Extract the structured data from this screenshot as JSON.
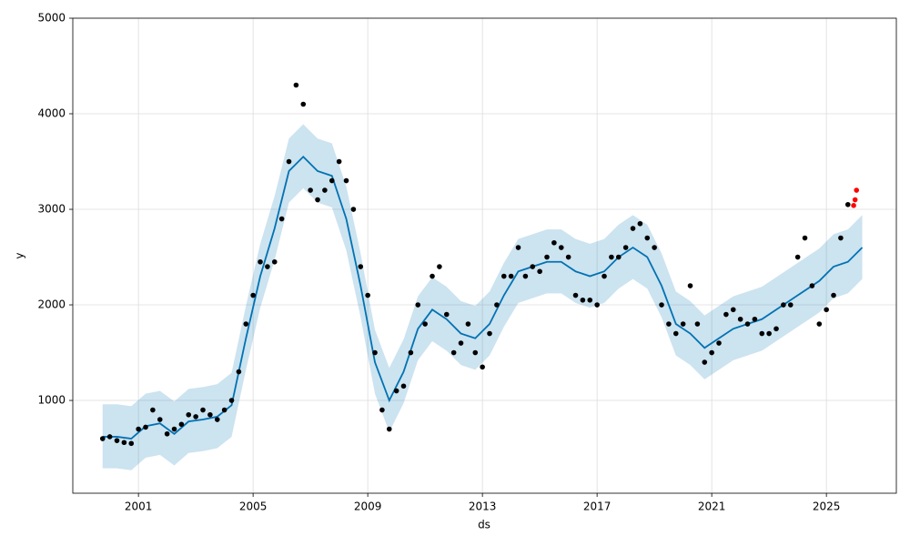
{
  "chart_data": {
    "type": "forecast",
    "xlabel": "ds",
    "ylabel": "y",
    "xlim": [
      1998.71,
      2027.44
    ],
    "ylim": [
      29,
      5000
    ],
    "xticks": [
      2001,
      2005,
      2009,
      2013,
      2017,
      2021,
      2025
    ],
    "yticks": [
      1000,
      2000,
      3000,
      4000,
      5000
    ],
    "grid": true,
    "points": {
      "color": "#000000",
      "x": [
        1999.75,
        2000.0,
        2000.25,
        2000.5,
        2000.75,
        2001.0,
        2001.25,
        2001.5,
        2001.75,
        2002.0,
        2002.25,
        2002.5,
        2002.75,
        2003.0,
        2003.25,
        2003.5,
        2003.75,
        2004.0,
        2004.25,
        2004.5,
        2004.75,
        2005.0,
        2005.25,
        2005.5,
        2005.75,
        2006.0,
        2006.25,
        2006.5,
        2006.75,
        2007.0,
        2007.25,
        2007.5,
        2007.75,
        2008.0,
        2008.25,
        2008.5,
        2008.75,
        2009.0,
        2009.25,
        2009.5,
        2009.75,
        2010.0,
        2010.25,
        2010.5,
        2010.75,
        2011.0,
        2011.25,
        2011.5,
        2011.75,
        2012.0,
        2012.25,
        2012.5,
        2012.75,
        2013.0,
        2013.25,
        2013.5,
        2013.75,
        2014.0,
        2014.25,
        2014.5,
        2014.75,
        2015.0,
        2015.25,
        2015.5,
        2015.75,
        2016.0,
        2016.25,
        2016.5,
        2016.75,
        2017.0,
        2017.25,
        2017.5,
        2017.75,
        2018.0,
        2018.25,
        2018.5,
        2018.75,
        2019.0,
        2019.25,
        2019.5,
        2019.75,
        2020.0,
        2020.25,
        2020.5,
        2020.75,
        2021.0,
        2021.25,
        2021.5,
        2021.75,
        2022.0,
        2022.25,
        2022.5,
        2022.75,
        2023.0,
        2023.25,
        2023.5,
        2023.75,
        2024.0,
        2024.25,
        2024.5,
        2024.75,
        2025.0,
        2025.25,
        2025.5,
        2025.75
      ],
      "values": [
        600,
        620,
        580,
        560,
        550,
        700,
        720,
        900,
        800,
        650,
        700,
        750,
        850,
        830,
        900,
        850,
        800,
        900,
        1000,
        1300,
        1800,
        2100,
        2450,
        2400,
        2450,
        2900,
        3500,
        4300,
        4100,
        3200,
        3100,
        3200,
        3300,
        3500,
        3300,
        3000,
        2400,
        2100,
        1500,
        900,
        700,
        1100,
        1150,
        1500,
        2000,
        1800,
        2300,
        2400,
        1900,
        1500,
        1600,
        1800,
        1500,
        1350,
        1700,
        2000,
        2300,
        2300,
        2600,
        2300,
        2400,
        2350,
        2500,
        2650,
        2600,
        2500,
        2100,
        2050,
        2050,
        2000,
        2300,
        2500,
        2500,
        2600,
        2800,
        2850,
        2700,
        2600,
        2000,
        1800,
        1700,
        1800,
        2200,
        1800,
        1400,
        1500,
        1600,
        1900,
        1950,
        1850,
        1800,
        1850,
        1700,
        1700,
        1750,
        2000,
        2000,
        2500,
        2700,
        2200,
        1800,
        1950,
        2100,
        2700,
        3050
      ]
    },
    "future_points": {
      "color": "#ff0000",
      "x": [
        2025.95,
        2026.0,
        2026.05
      ],
      "values": [
        3040,
        3100,
        3200
      ]
    },
    "forecast": {
      "color": "#0072B2",
      "x": [
        1999.75,
        2000.25,
        2000.75,
        2001.25,
        2001.75,
        2002.25,
        2002.75,
        2003.25,
        2003.75,
        2004.25,
        2004.75,
        2005.25,
        2005.75,
        2006.25,
        2006.75,
        2007.25,
        2007.75,
        2008.25,
        2008.75,
        2009.25,
        2009.75,
        2010.25,
        2010.75,
        2011.25,
        2011.75,
        2012.25,
        2012.75,
        2013.25,
        2013.75,
        2014.25,
        2014.75,
        2015.25,
        2015.75,
        2016.25,
        2016.75,
        2017.25,
        2017.75,
        2018.25,
        2018.75,
        2019.25,
        2019.75,
        2020.25,
        2020.75,
        2021.25,
        2021.75,
        2022.25,
        2022.75,
        2023.25,
        2023.75,
        2024.25,
        2024.75,
        2025.25,
        2025.75,
        2026.25
      ],
      "values": [
        620,
        620,
        600,
        730,
        760,
        650,
        780,
        800,
        830,
        950,
        1650,
        2300,
        2800,
        3400,
        3550,
        3400,
        3350,
        2900,
        2200,
        1400,
        1000,
        1300,
        1750,
        1950,
        1850,
        1700,
        1650,
        1800,
        2100,
        2350,
        2400,
        2450,
        2450,
        2350,
        2300,
        2350,
        2500,
        2600,
        2500,
        2200,
        1800,
        1700,
        1550,
        1650,
        1750,
        1800,
        1850,
        1950,
        2050,
        2150,
        2250,
        2400,
        2450,
        2600
      ],
      "lower": [
        290,
        290,
        270,
        400,
        430,
        320,
        450,
        470,
        500,
        620,
        1320,
        1970,
        2470,
        3070,
        3220,
        3070,
        3020,
        2570,
        1870,
        1070,
        670,
        970,
        1420,
        1620,
        1520,
        1370,
        1320,
        1470,
        1770,
        2020,
        2070,
        2120,
        2120,
        2020,
        1970,
        2020,
        2170,
        2270,
        2170,
        1870,
        1470,
        1370,
        1220,
        1320,
        1420,
        1470,
        1520,
        1620,
        1720,
        1820,
        1920,
        2070,
        2120,
        2270
      ],
      "upper": [
        960,
        960,
        940,
        1070,
        1100,
        990,
        1120,
        1140,
        1170,
        1290,
        1990,
        2640,
        3140,
        3740,
        3890,
        3740,
        3690,
        3240,
        2540,
        1740,
        1340,
        1640,
        2090,
        2290,
        2190,
        2040,
        1990,
        2140,
        2440,
        2690,
        2740,
        2790,
        2790,
        2690,
        2640,
        2690,
        2840,
        2940,
        2840,
        2540,
        2140,
        2040,
        1890,
        1990,
        2090,
        2140,
        2190,
        2290,
        2390,
        2490,
        2590,
        2740,
        2790,
        2940
      ]
    }
  }
}
